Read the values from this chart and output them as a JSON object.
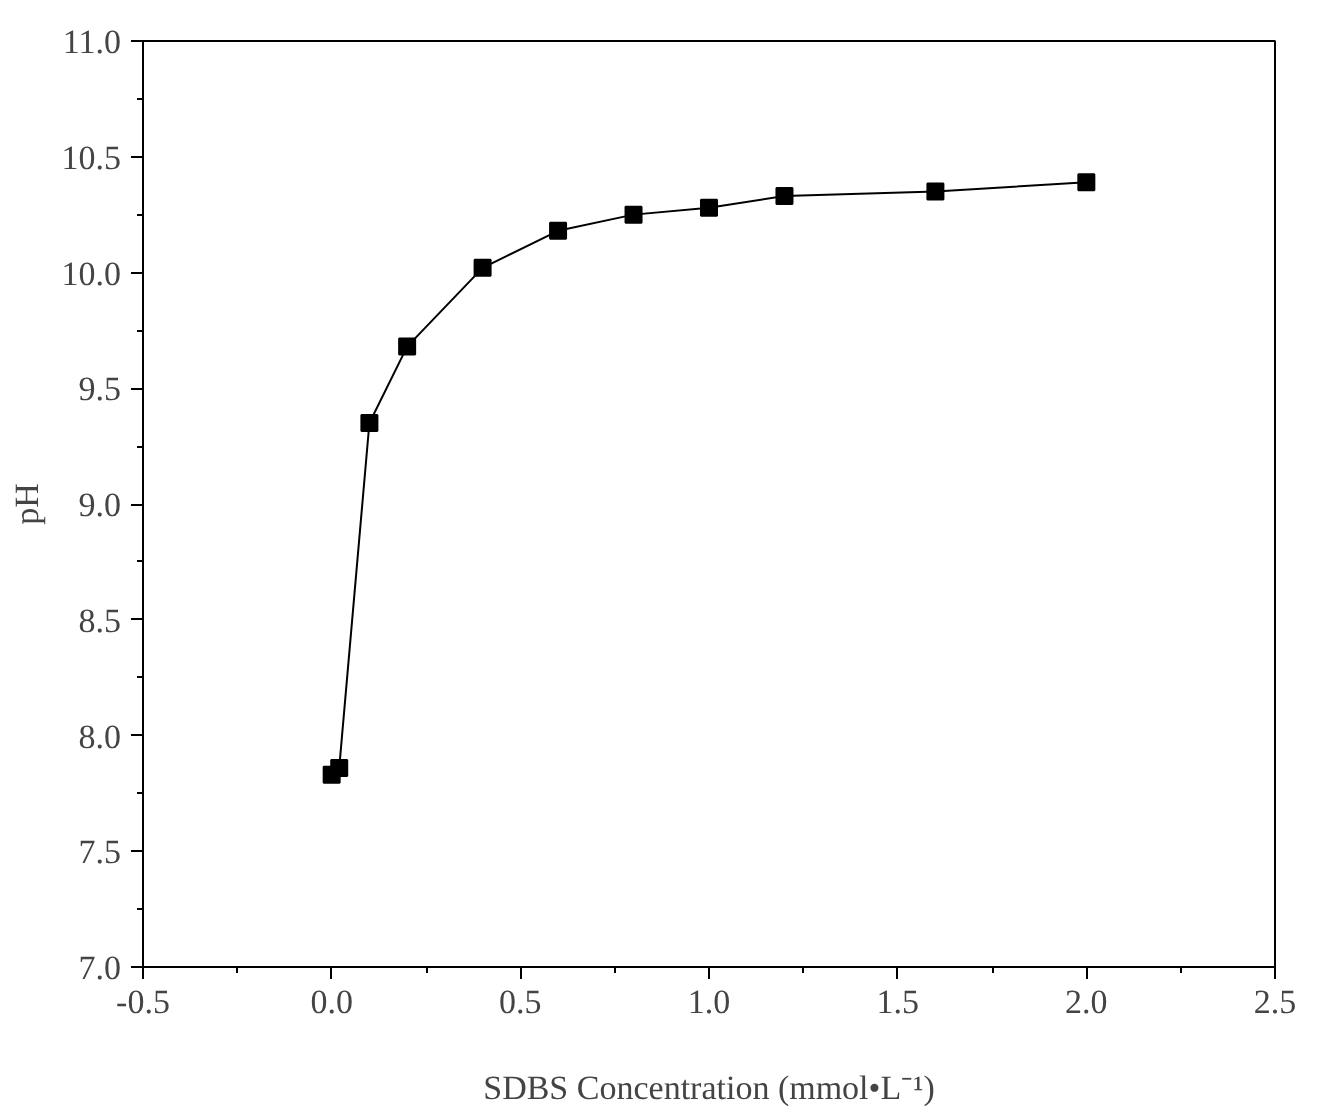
{
  "chart_data": {
    "type": "line",
    "xlabel": "SDBS Concentration (mmol•L⁻¹)",
    "ylabel": "pH",
    "x": [
      0,
      0.02,
      0.1,
      0.2,
      0.4,
      0.6,
      0.8,
      1.0,
      1.2,
      1.6,
      2.0
    ],
    "series": [
      {
        "color": "#000000",
        "values": [
          7.83,
          7.86,
          9.35,
          9.68,
          10.02,
          10.18,
          10.25,
          10.28,
          10.33,
          10.35,
          10.39
        ]
      }
    ],
    "marker": "square",
    "line_style": "solid",
    "grid": false,
    "xlim": [
      -0.5,
      2.5
    ],
    "ylim": [
      7.0,
      11.0
    ],
    "xticks": [
      {
        "value": -0.5,
        "label": "-0.5"
      },
      {
        "value": -0.25,
        "label": null
      },
      {
        "value": 0,
        "label": "0.0"
      },
      {
        "value": 0.25,
        "label": null
      },
      {
        "value": 0.5,
        "label": "0.5"
      },
      {
        "value": 0.75,
        "label": null
      },
      {
        "value": 1.0,
        "label": "1.0"
      },
      {
        "value": 1.25,
        "label": null
      },
      {
        "value": 1.5,
        "label": "1.5"
      },
      {
        "value": 1.75,
        "label": null
      },
      {
        "value": 2.0,
        "label": "2.0"
      },
      {
        "value": 2.25,
        "label": null
      },
      {
        "value": 2.5,
        "label": "2.5"
      }
    ],
    "yticks": [
      {
        "value": 7.0,
        "label": "7.0"
      },
      {
        "value": 7.25,
        "label": null
      },
      {
        "value": 7.5,
        "label": "7.5"
      },
      {
        "value": 7.75,
        "label": null
      },
      {
        "value": 8.0,
        "label": "8.0"
      },
      {
        "value": 8.25,
        "label": null
      },
      {
        "value": 8.5,
        "label": "8.5"
      },
      {
        "value": 8.75,
        "label": null
      },
      {
        "value": 9.0,
        "label": "9.0"
      },
      {
        "value": 9.25,
        "label": null
      },
      {
        "value": 9.5,
        "label": "9.5"
      },
      {
        "value": 9.75,
        "label": null
      },
      {
        "value": 10.0,
        "label": "10.0"
      },
      {
        "value": 10.25,
        "label": null
      },
      {
        "value": 10.5,
        "label": "10.5"
      },
      {
        "value": 10.75,
        "label": null
      },
      {
        "value": 11.0,
        "label": "11.0"
      }
    ]
  }
}
